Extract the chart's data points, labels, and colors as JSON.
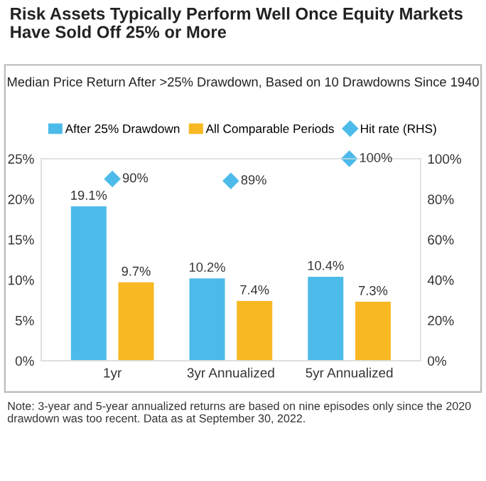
{
  "chart_data": {
    "type": "bar",
    "title": "Risk Assets Typically Perform Well Once Equity Markets Have Sold Off 25% or More",
    "subtitle": "Median Price Return After >25% Drawdown, Based on 10 Drawdowns Since 1940",
    "categories": [
      "1yr",
      "3yr Annualized",
      "5yr Annualized"
    ],
    "series": [
      {
        "name": "After 25% Drawdown",
        "color": "#4dbbea",
        "values": [
          19.1,
          10.2,
          10.4
        ],
        "value_labels": [
          "19.1%",
          "10.2%",
          "10.4%"
        ]
      },
      {
        "name": "All Comparable Periods",
        "color": "#f7b823",
        "values": [
          9.7,
          7.4,
          7.3
        ],
        "value_labels": [
          "9.7%",
          "7.4%",
          "7.3%"
        ]
      },
      {
        "name": "Hit rate (RHS)",
        "type": "scatter",
        "axis": "y2",
        "marker": "diamond",
        "color": "#4dbbea",
        "values": [
          90,
          89,
          100
        ],
        "value_labels": [
          "90%",
          "89%",
          "100%"
        ]
      }
    ],
    "ylim": [
      0,
      25
    ],
    "yticks": [
      {
        "value": 0,
        "label": "0%"
      },
      {
        "value": 5,
        "label": "5%"
      },
      {
        "value": 10,
        "label": "10%"
      },
      {
        "value": 15,
        "label": "15%"
      },
      {
        "value": 20,
        "label": "20%"
      },
      {
        "value": 25,
        "label": "25%"
      }
    ],
    "y2lim": [
      0,
      100
    ],
    "y2ticks": [
      {
        "value": 0,
        "label": "0%"
      },
      {
        "value": 20,
        "label": "20%"
      },
      {
        "value": 40,
        "label": "40%"
      },
      {
        "value": 60,
        "label": "60%"
      },
      {
        "value": 80,
        "label": "80%"
      },
      {
        "value": 100,
        "label": "100%"
      }
    ],
    "legend": "top",
    "annotations": [
      "Note: 3-year and 5-year annualized returns are based on nine episodes only since the 2020 drawdown was too recent. Data as at September 30, 2022."
    ]
  }
}
